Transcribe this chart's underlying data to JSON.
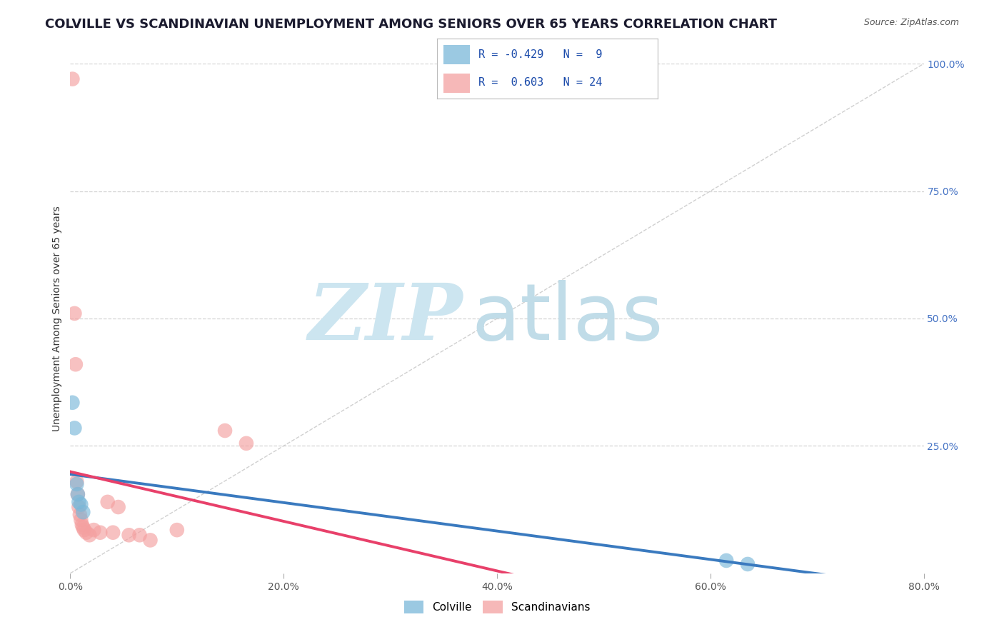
{
  "title": "COLVILLE VS SCANDINAVIAN UNEMPLOYMENT AMONG SENIORS OVER 65 YEARS CORRELATION CHART",
  "source": "Source: ZipAtlas.com",
  "ylabel": "Unemployment Among Seniors over 65 years",
  "xlim": [
    0.0,
    0.8
  ],
  "ylim": [
    0.0,
    1.0
  ],
  "xtick_labels": [
    "0.0%",
    "20.0%",
    "40.0%",
    "60.0%",
    "80.0%"
  ],
  "xtick_vals": [
    0.0,
    0.2,
    0.4,
    0.6,
    0.8
  ],
  "ytick_labels": [
    "25.0%",
    "50.0%",
    "75.0%",
    "100.0%"
  ],
  "ytick_vals": [
    0.25,
    0.5,
    0.75,
    1.0
  ],
  "colville_color": "#7ab8d9",
  "scandinavian_color": "#f4a0a0",
  "colville_R": -0.429,
  "colville_N": 9,
  "scandinavian_R": 0.603,
  "scandinavian_N": 24,
  "colville_points": [
    [
      0.002,
      0.335
    ],
    [
      0.004,
      0.285
    ],
    [
      0.006,
      0.175
    ],
    [
      0.007,
      0.155
    ],
    [
      0.008,
      0.14
    ],
    [
      0.01,
      0.135
    ],
    [
      0.012,
      0.12
    ],
    [
      0.615,
      0.025
    ],
    [
      0.635,
      0.018
    ]
  ],
  "scandinavian_points": [
    [
      0.002,
      0.97
    ],
    [
      0.004,
      0.51
    ],
    [
      0.005,
      0.41
    ],
    [
      0.006,
      0.18
    ],
    [
      0.007,
      0.155
    ],
    [
      0.008,
      0.13
    ],
    [
      0.009,
      0.115
    ],
    [
      0.01,
      0.105
    ],
    [
      0.011,
      0.095
    ],
    [
      0.012,
      0.09
    ],
    [
      0.013,
      0.085
    ],
    [
      0.015,
      0.08
    ],
    [
      0.018,
      0.075
    ],
    [
      0.022,
      0.085
    ],
    [
      0.028,
      0.08
    ],
    [
      0.035,
      0.14
    ],
    [
      0.04,
      0.08
    ],
    [
      0.045,
      0.13
    ],
    [
      0.055,
      0.075
    ],
    [
      0.065,
      0.075
    ],
    [
      0.075,
      0.065
    ],
    [
      0.1,
      0.085
    ],
    [
      0.145,
      0.28
    ],
    [
      0.165,
      0.255
    ]
  ],
  "colville_line_color": "#3a7abf",
  "scandinavian_line_color": "#e8406a",
  "diag_line_color": "#c8c8c8",
  "grid_color": "#d0d0d0",
  "background_color": "#ffffff",
  "watermark_zip_color": "#cce5f0",
  "watermark_atlas_color": "#c0dce8",
  "title_fontsize": 13,
  "label_fontsize": 10,
  "tick_fontsize": 10,
  "source_fontsize": 9
}
